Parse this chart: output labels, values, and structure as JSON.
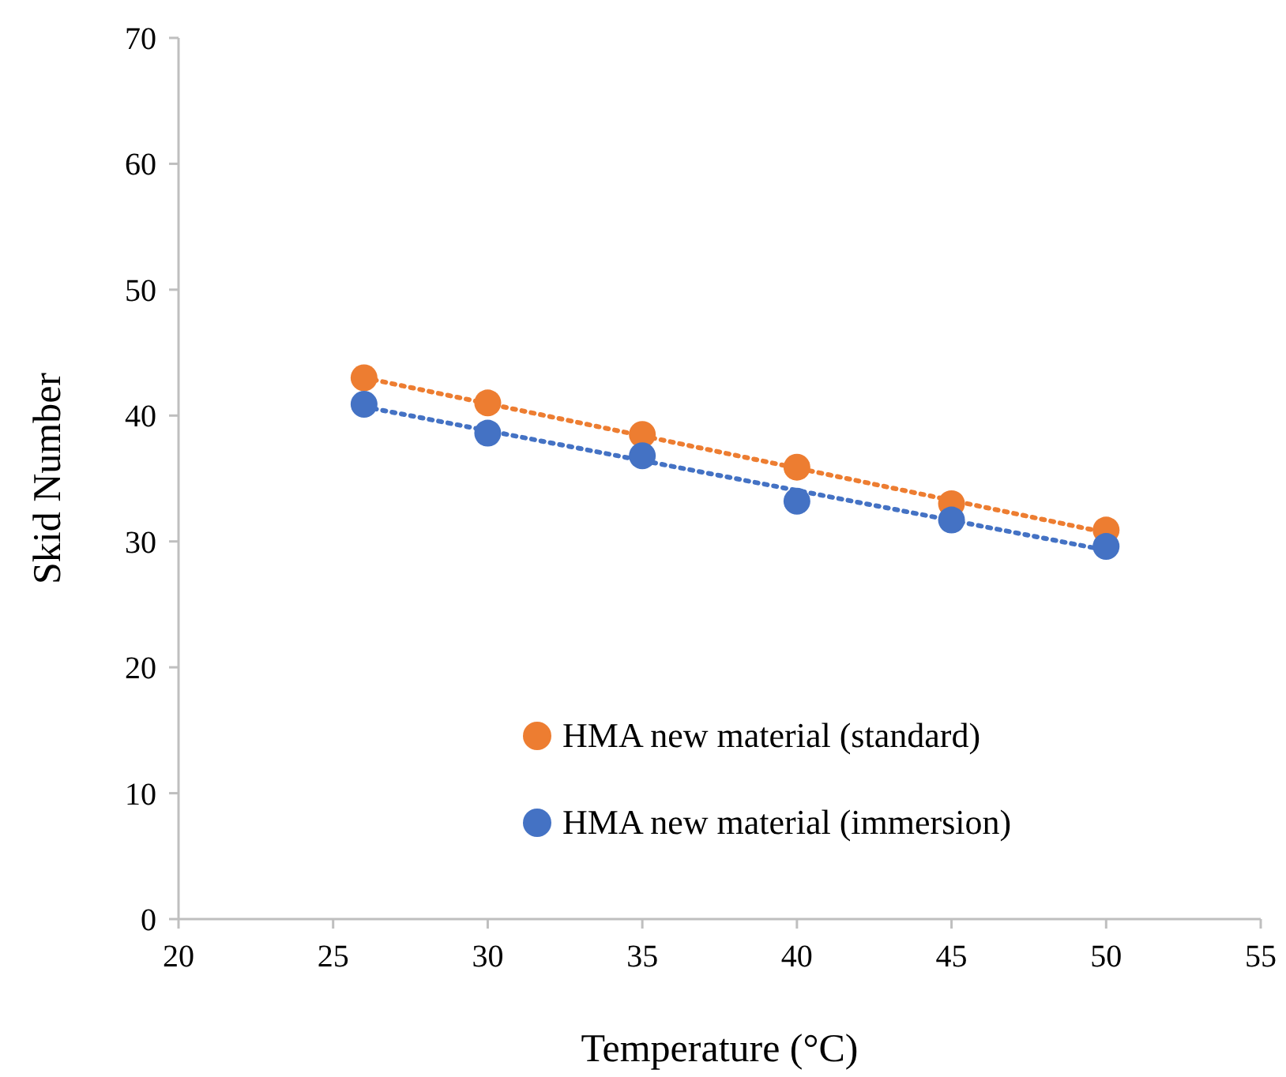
{
  "chart_data": {
    "type": "scatter",
    "xlabel": "Temperature (°C)",
    "ylabel": "Skid Number",
    "xlim": [
      20,
      55
    ],
    "xticks": [
      20,
      25,
      30,
      35,
      40,
      45,
      50,
      55
    ],
    "ylim": [
      0,
      70
    ],
    "yticks": [
      0,
      10,
      20,
      30,
      40,
      50,
      60,
      70
    ],
    "grid": false,
    "legend": "bottom right",
    "marker": "circle",
    "series": [
      {
        "name": "HMA new material (standard)",
        "color": "#ed7d31",
        "x": [
          26,
          30,
          35,
          40,
          45,
          50
        ],
        "values": [
          43.0,
          41.0,
          38.5,
          35.9,
          33.0,
          30.9
        ]
      },
      {
        "name": "HMA new material (immersion)",
        "color": "#4472c4",
        "x": [
          26,
          30,
          35,
          40,
          45,
          50
        ],
        "values": [
          40.9,
          38.6,
          36.8,
          33.2,
          31.7,
          29.6
        ]
      },
      {
        "type": "line",
        "color": "#ed7d31",
        "line_style": "dotted",
        "marker": "none",
        "x": [
          26,
          50
        ],
        "values": [
          43.0,
          30.7
        ]
      },
      {
        "type": "line",
        "color": "#4472c4",
        "line_style": "dotted",
        "marker": "none",
        "x": [
          26,
          50
        ],
        "values": [
          40.7,
          29.3
        ]
      }
    ]
  }
}
